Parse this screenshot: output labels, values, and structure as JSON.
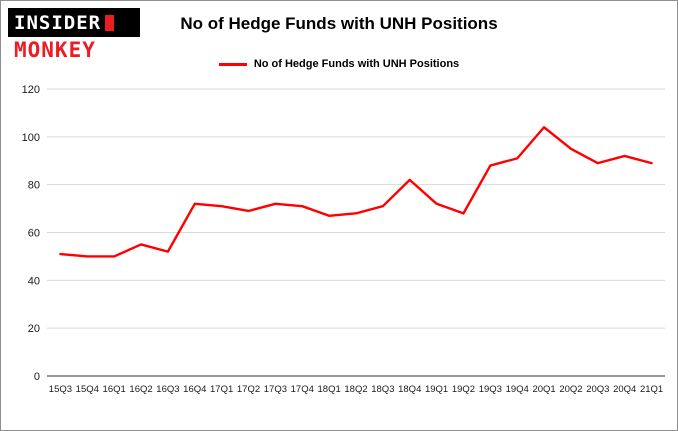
{
  "logo": {
    "line1": "INSIDER",
    "line2": "MONKEY",
    "accent_color": "#ec1c24",
    "bg_color": "#000000"
  },
  "header": {
    "title": "No of Hedge Funds with UNH Positions"
  },
  "legend": {
    "label": "No of Hedge Funds with UNH Positions",
    "color": "#ff0000"
  },
  "chart_data": {
    "type": "line",
    "title": "No of Hedge Funds with UNH Positions",
    "xlabel": "",
    "ylabel": "",
    "ylim": [
      0,
      120
    ],
    "yticks": [
      0,
      20,
      40,
      60,
      80,
      100,
      120
    ],
    "grid": true,
    "legend_position": "top",
    "line_color": "#ff0000",
    "categories": [
      "15Q3",
      "15Q4",
      "16Q1",
      "16Q2",
      "16Q3",
      "16Q4",
      "17Q1",
      "17Q2",
      "17Q3",
      "17Q4",
      "18Q1",
      "18Q2",
      "18Q3",
      "18Q4",
      "19Q1",
      "19Q2",
      "19Q3",
      "19Q4",
      "20Q1",
      "20Q2",
      "20Q3",
      "20Q4",
      "21Q1"
    ],
    "series": [
      {
        "name": "No of Hedge Funds with UNH Positions",
        "values": [
          51,
          50,
          50,
          55,
          52,
          72,
          71,
          69,
          72,
          71,
          67,
          68,
          71,
          82,
          72,
          68,
          88,
          91,
          104,
          95,
          89,
          92,
          89
        ]
      }
    ]
  }
}
